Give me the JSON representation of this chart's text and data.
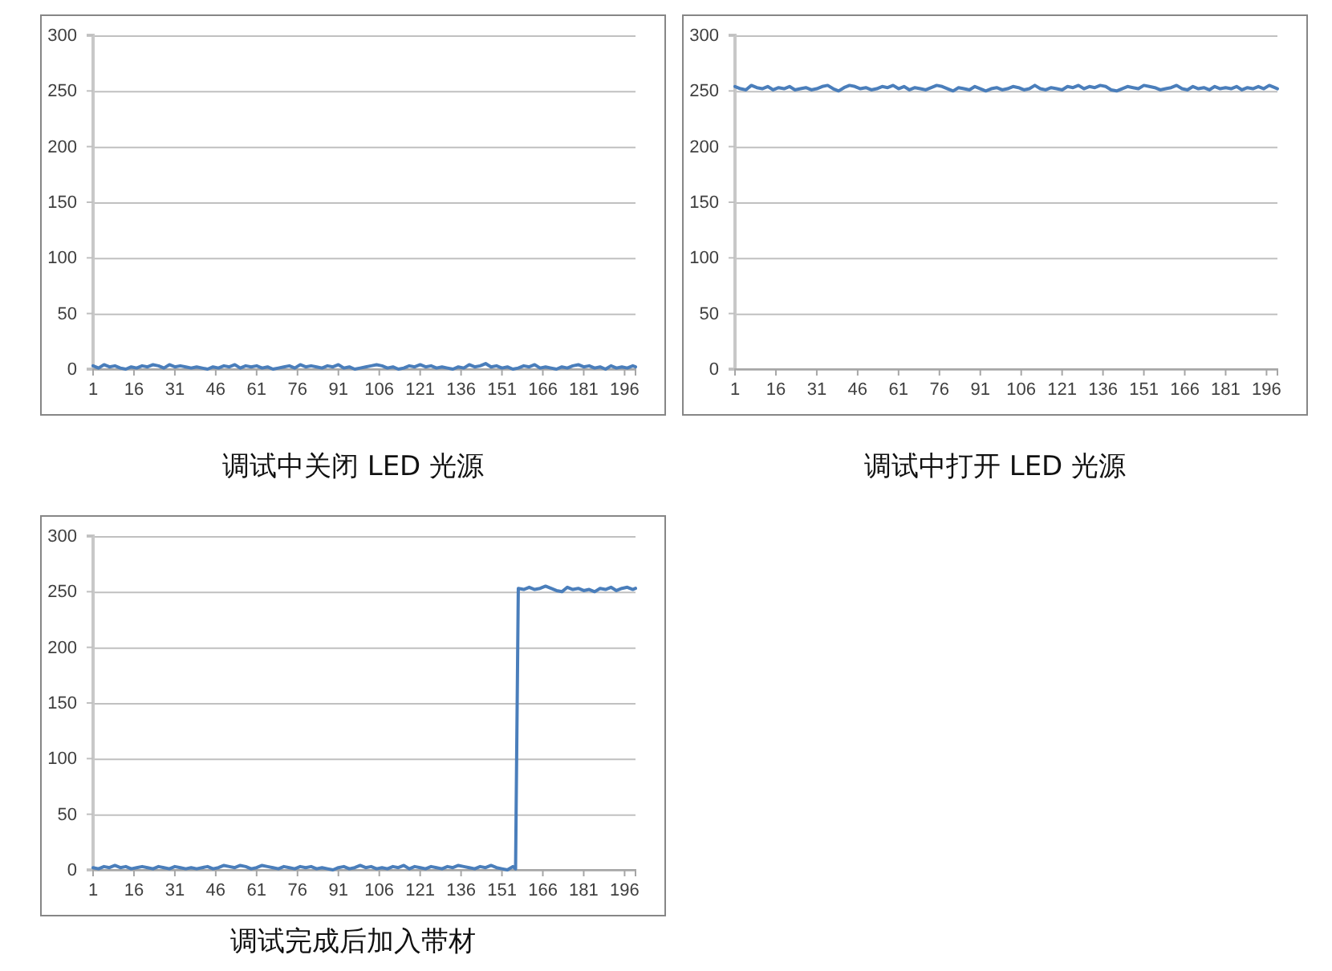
{
  "chart_data": [
    {
      "type": "line",
      "title": "调试中关闭 LED 光源",
      "color": "#4a7ebb",
      "xlim": [
        1,
        200
      ],
      "xticks": [
        1,
        16,
        31,
        46,
        61,
        76,
        91,
        106,
        121,
        136,
        151,
        166,
        181,
        196
      ],
      "ylim": [
        0,
        300
      ],
      "yticks": [
        0,
        50,
        100,
        150,
        200,
        250,
        300
      ],
      "grid": "y",
      "x": [
        1,
        3,
        5,
        7,
        9,
        11,
        13,
        15,
        17,
        19,
        21,
        23,
        25,
        27,
        29,
        31,
        33,
        35,
        37,
        39,
        41,
        43,
        45,
        47,
        49,
        51,
        53,
        55,
        57,
        59,
        61,
        63,
        65,
        67,
        69,
        71,
        73,
        75,
        77,
        79,
        81,
        83,
        85,
        87,
        89,
        91,
        93,
        95,
        97,
        99,
        101,
        103,
        105,
        107,
        109,
        111,
        113,
        115,
        117,
        119,
        121,
        123,
        125,
        127,
        129,
        131,
        133,
        135,
        137,
        139,
        141,
        143,
        145,
        147,
        149,
        151,
        153,
        155,
        157,
        159,
        161,
        163,
        165,
        167,
        169,
        171,
        173,
        175,
        177,
        179,
        181,
        183,
        185,
        187,
        189,
        191,
        193,
        195,
        197,
        199,
        200
      ],
      "values": [
        3,
        1,
        4,
        2,
        3,
        1,
        0,
        2,
        1,
        3,
        2,
        4,
        3,
        1,
        4,
        2,
        3,
        2,
        1,
        2,
        1,
        0,
        2,
        1,
        3,
        2,
        4,
        1,
        3,
        2,
        3,
        1,
        2,
        0,
        1,
        2,
        3,
        1,
        4,
        2,
        3,
        2,
        1,
        3,
        2,
        4,
        1,
        2,
        0,
        1,
        2,
        3,
        4,
        3,
        1,
        2,
        0,
        1,
        3,
        2,
        4,
        2,
        3,
        1,
        2,
        1,
        0,
        2,
        1,
        4,
        2,
        3,
        5,
        2,
        3,
        1,
        2,
        0,
        1,
        3,
        2,
        4,
        1,
        2,
        1,
        0,
        2,
        1,
        3,
        4,
        2,
        3,
        1,
        2,
        0,
        3,
        1,
        2,
        1,
        3,
        2
      ]
    },
    {
      "type": "line",
      "title": "调试中打开 LED 光源",
      "color": "#4a7ebb",
      "xlim": [
        1,
        200
      ],
      "xticks": [
        1,
        16,
        31,
        46,
        61,
        76,
        91,
        106,
        121,
        136,
        151,
        166,
        181,
        196
      ],
      "ylim": [
        0,
        300
      ],
      "yticks": [
        0,
        50,
        100,
        150,
        200,
        250,
        300
      ],
      "grid": "y",
      "x": [
        1,
        3,
        5,
        7,
        9,
        11,
        13,
        15,
        17,
        19,
        21,
        23,
        25,
        27,
        29,
        31,
        33,
        35,
        37,
        39,
        41,
        43,
        45,
        47,
        49,
        51,
        53,
        55,
        57,
        59,
        61,
        63,
        65,
        67,
        69,
        71,
        73,
        75,
        77,
        79,
        81,
        83,
        85,
        87,
        89,
        91,
        93,
        95,
        97,
        99,
        101,
        103,
        105,
        107,
        109,
        111,
        113,
        115,
        117,
        119,
        121,
        123,
        125,
        127,
        129,
        131,
        133,
        135,
        137,
        139,
        141,
        143,
        145,
        147,
        149,
        151,
        153,
        155,
        157,
        159,
        161,
        163,
        165,
        167,
        169,
        171,
        173,
        175,
        177,
        179,
        181,
        183,
        185,
        187,
        189,
        191,
        193,
        195,
        197,
        199,
        200
      ],
      "values": [
        254,
        252,
        251,
        255,
        253,
        252,
        254,
        251,
        253,
        252,
        254,
        251,
        252,
        253,
        251,
        252,
        254,
        255,
        252,
        250,
        253,
        255,
        254,
        252,
        253,
        251,
        252,
        254,
        253,
        255,
        252,
        254,
        251,
        253,
        252,
        251,
        253,
        255,
        254,
        252,
        250,
        253,
        252,
        251,
        254,
        252,
        250,
        252,
        253,
        251,
        252,
        254,
        253,
        251,
        252,
        255,
        252,
        251,
        253,
        252,
        251,
        254,
        253,
        255,
        252,
        254,
        253,
        255,
        254,
        251,
        250,
        252,
        254,
        253,
        252,
        255,
        254,
        253,
        251,
        252,
        253,
        255,
        252,
        251,
        254,
        252,
        253,
        251,
        254,
        252,
        253,
        252,
        254,
        251,
        253,
        252,
        254,
        252,
        255,
        253,
        252
      ]
    },
    {
      "type": "line",
      "title": "调试完成后加入带材",
      "color": "#4a7ebb",
      "xlim": [
        1,
        200
      ],
      "xticks": [
        1,
        16,
        31,
        46,
        61,
        76,
        91,
        106,
        121,
        136,
        151,
        166,
        181,
        196
      ],
      "ylim": [
        0,
        300
      ],
      "yticks": [
        0,
        50,
        100,
        150,
        200,
        250,
        300
      ],
      "grid": "y",
      "x": [
        1,
        3,
        5,
        7,
        9,
        11,
        13,
        15,
        17,
        19,
        21,
        23,
        25,
        27,
        29,
        31,
        33,
        35,
        37,
        39,
        41,
        43,
        45,
        47,
        49,
        51,
        53,
        55,
        57,
        59,
        61,
        63,
        65,
        67,
        69,
        71,
        73,
        75,
        77,
        79,
        81,
        83,
        85,
        87,
        89,
        91,
        93,
        95,
        97,
        99,
        101,
        103,
        105,
        107,
        109,
        111,
        113,
        115,
        117,
        119,
        121,
        123,
        125,
        127,
        129,
        131,
        133,
        135,
        137,
        139,
        141,
        143,
        145,
        147,
        149,
        151,
        153,
        155,
        156,
        157,
        159,
        161,
        163,
        165,
        167,
        169,
        171,
        173,
        175,
        177,
        179,
        181,
        183,
        185,
        187,
        189,
        191,
        193,
        195,
        197,
        199,
        200
      ],
      "values": [
        2,
        1,
        3,
        2,
        4,
        2,
        3,
        1,
        2,
        3,
        2,
        1,
        3,
        2,
        1,
        3,
        2,
        1,
        2,
        1,
        2,
        3,
        1,
        2,
        4,
        3,
        2,
        4,
        3,
        1,
        2,
        4,
        3,
        2,
        1,
        3,
        2,
        1,
        3,
        2,
        3,
        1,
        2,
        1,
        0,
        2,
        3,
        1,
        2,
        4,
        2,
        3,
        1,
        2,
        1,
        3,
        2,
        4,
        1,
        3,
        2,
        1,
        3,
        2,
        1,
        3,
        2,
        4,
        3,
        2,
        1,
        3,
        2,
        4,
        2,
        1,
        0,
        3,
        1,
        253,
        252,
        254,
        252,
        253,
        255,
        253,
        251,
        250,
        254,
        252,
        253,
        251,
        252,
        250,
        253,
        252,
        254,
        251,
        253,
        254,
        252,
        253
      ]
    }
  ]
}
